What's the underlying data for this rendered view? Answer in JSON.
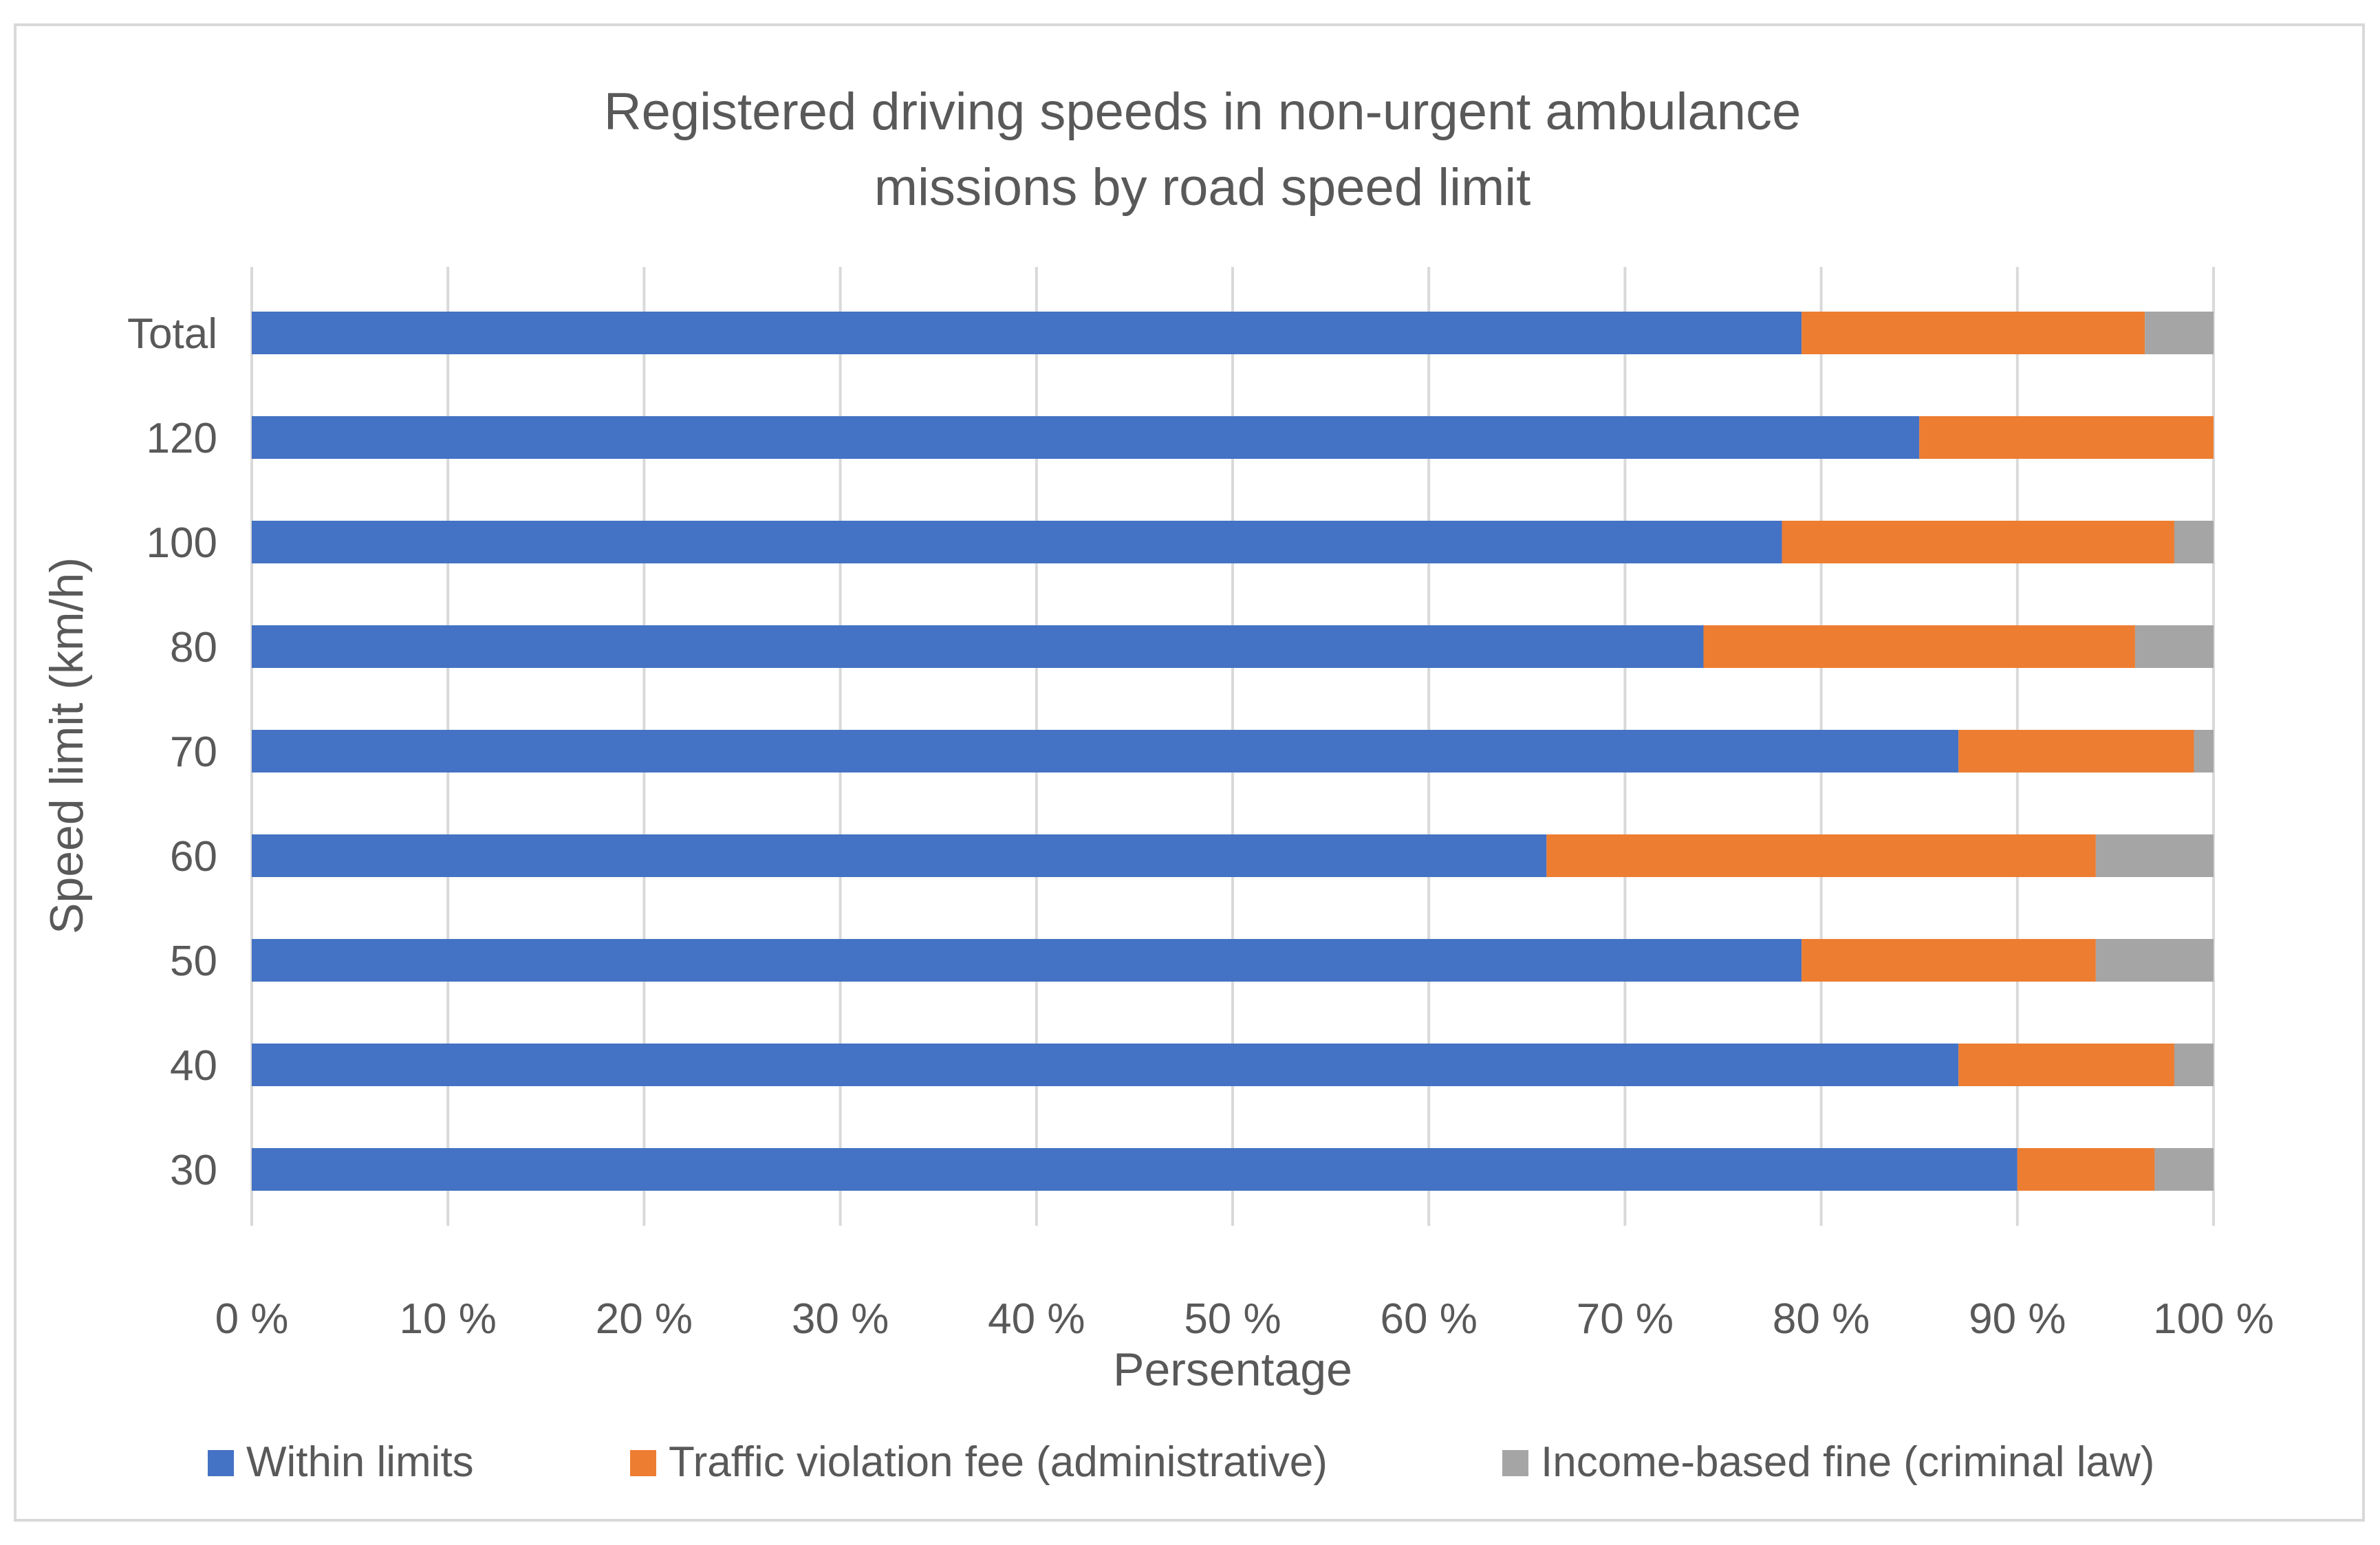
{
  "chart_data": {
    "type": "bar",
    "orientation": "horizontal",
    "stacked": "percent",
    "title_lines": [
      "Registered driving speeds in non-urgent ambulance",
      "missions by road speed limit"
    ],
    "xlabel": "Persentage",
    "ylabel": "Speed limit (km/h)",
    "categories": [
      "Total",
      "120",
      "100",
      "80",
      "70",
      "60",
      "50",
      "40",
      "30"
    ],
    "xlim": [
      0,
      100
    ],
    "xticks": [
      "0 %",
      "10 %",
      "20 %",
      "30 %",
      "40 %",
      "50 %",
      "60 %",
      "70 %",
      "80 %",
      "90 %",
      "100 %"
    ],
    "grid": true,
    "legend_position": "bottom",
    "series": [
      {
        "name": "Within limits",
        "color": "#4472c4",
        "values": [
          79,
          85,
          78,
          74,
          87,
          66,
          79,
          87,
          90
        ]
      },
      {
        "name": "Traffic violation fee (administrative)",
        "color": "#ed7d31",
        "values": [
          17.5,
          15,
          20,
          22,
          12,
          28,
          15,
          11,
          7
        ]
      },
      {
        "name": "Income-based fine (criminal law)",
        "color": "#a5a5a5",
        "values": [
          3.5,
          0,
          2,
          4,
          1,
          6,
          6,
          2,
          3
        ]
      }
    ]
  }
}
